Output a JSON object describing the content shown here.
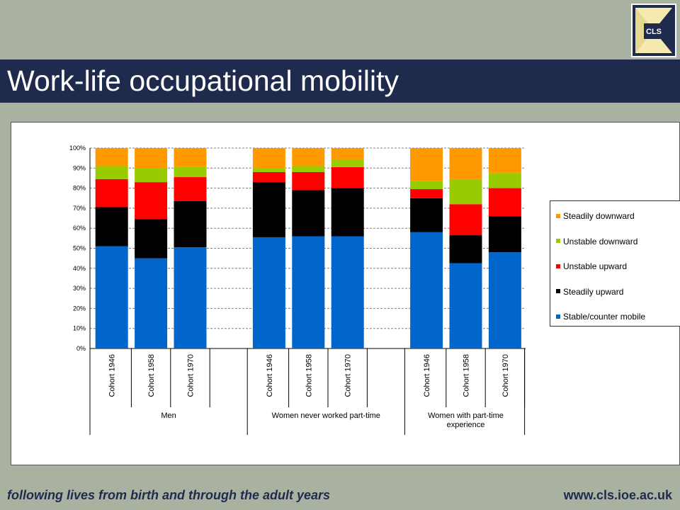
{
  "slide": {
    "title": "Work-life occupational mobility",
    "logo_text": "CLS",
    "footer_tagline": "following lives from birth and through the adult years",
    "footer_url": "www.cls.ioe.ac.uk"
  },
  "colors": {
    "title_bar": "#1f2b4d",
    "background": "#a9b2a1",
    "logo_accent": "#f5e9b0"
  },
  "chart_data": {
    "type": "bar",
    "stacked": true,
    "percent_stacked": true,
    "ylim": [
      0,
      100
    ],
    "yticks": [
      "0%",
      "10%",
      "20%",
      "30%",
      "40%",
      "50%",
      "60%",
      "70%",
      "80%",
      "90%",
      "100%"
    ],
    "grid": true,
    "legend_position": "right",
    "groups": [
      {
        "name": "Men",
        "categories": [
          "Cohort 1946",
          "Cohort 1958",
          "Cohort 1970"
        ]
      },
      {
        "name": "Women never worked part-time",
        "categories": [
          "Cohort 1946",
          "Cohort 1958",
          "Cohort 1970"
        ]
      },
      {
        "name": "Women with part-time experience",
        "categories": [
          "Cohort 1946",
          "Cohort 1958",
          "Cohort 1970"
        ]
      }
    ],
    "series": [
      {
        "name": "Stable/counter mobile",
        "color": "#0066cc",
        "values": [
          51,
          45,
          50.5,
          55.5,
          56,
          56,
          58,
          42.5,
          48
        ]
      },
      {
        "name": "Steadily upward",
        "color": "#000000",
        "values": [
          19.5,
          19.5,
          23,
          27.5,
          23,
          24,
          17,
          14,
          18
        ]
      },
      {
        "name": "Unstable upward",
        "color": "#ff0000",
        "values": [
          14,
          18.5,
          12,
          5,
          9,
          10.5,
          4.5,
          15.5,
          14
        ]
      },
      {
        "name": "Unstable downward",
        "color": "#99cc00",
        "values": [
          6.5,
          7,
          5,
          2,
          3,
          3.5,
          4,
          12.5,
          7.5
        ]
      },
      {
        "name": "Steadily downward",
        "color": "#ff9900",
        "values": [
          9,
          10,
          9.5,
          10,
          9,
          6,
          16.5,
          15.5,
          12.5
        ]
      }
    ]
  }
}
